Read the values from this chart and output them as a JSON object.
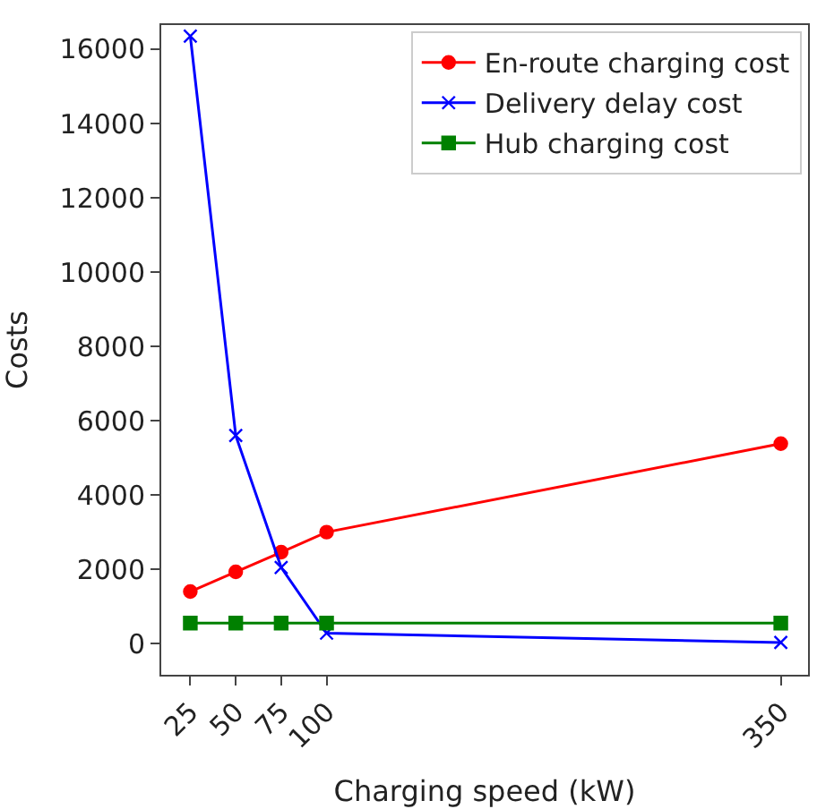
{
  "chart_data": {
    "type": "line",
    "xlabel": "Charging speed (kW)",
    "ylabel": "Costs",
    "x": [
      25,
      50,
      75,
      100,
      350
    ],
    "series": [
      {
        "name": "En-route charging cost",
        "color": "#ff0000",
        "marker": "circle",
        "values": [
          1400,
          1930,
          2460,
          3000,
          5380
        ]
      },
      {
        "name": "Delivery delay cost",
        "color": "#0000ff",
        "marker": "cross",
        "values": [
          16350,
          5600,
          2050,
          280,
          30
        ]
      },
      {
        "name": "Hub charging cost",
        "color": "#008000",
        "marker": "square",
        "values": [
          550,
          550,
          550,
          550,
          550
        ]
      }
    ],
    "xlim": [
      9,
      365
    ],
    "xticks": [
      25,
      50,
      75,
      100,
      350
    ],
    "ylim": [
      -840,
      16650
    ],
    "yticks": [
      0,
      2000,
      4000,
      6000,
      8000,
      10000,
      12000,
      14000,
      16000
    ],
    "legend": "top right",
    "line_style": "solid"
  }
}
